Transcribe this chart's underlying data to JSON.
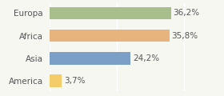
{
  "categories": [
    "America",
    "Asia",
    "Africa",
    "Europa"
  ],
  "values": [
    3.7,
    24.2,
    35.8,
    36.2
  ],
  "labels": [
    "3,7%",
    "24,2%",
    "35,8%",
    "36,2%"
  ],
  "bar_colors": [
    "#f5cc6a",
    "#7b9fc7",
    "#e8b47e",
    "#a8be8c"
  ],
  "background_color": "#f7f7f2",
  "grid_color": "#ffffff",
  "xlim": [
    0,
    44
  ],
  "bar_height": 0.55,
  "label_fontsize": 7.5,
  "tick_fontsize": 7.5,
  "text_color": "#555555"
}
